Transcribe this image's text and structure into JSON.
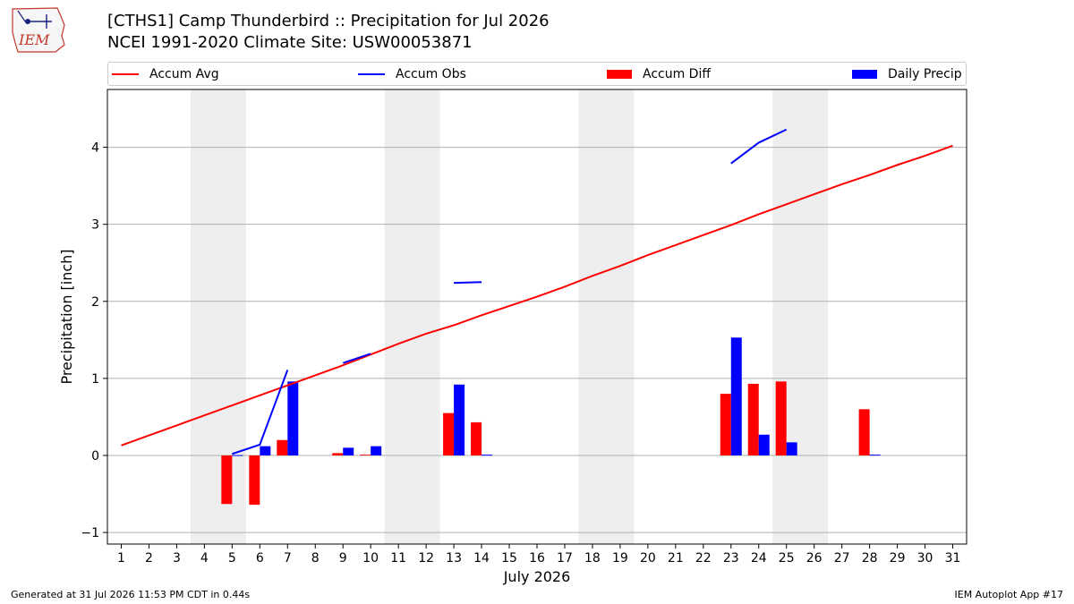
{
  "header": {
    "title_line1": "[CTHS1] Camp Thunderbird :: Precipitation for Jul 2026",
    "title_line2": "NCEI 1991-2020 Climate Site: USW00053871"
  },
  "logo": {
    "text": "IEM"
  },
  "legend": {
    "items": [
      {
        "label": "Accum Avg",
        "kind": "line",
        "color": "#ff0000"
      },
      {
        "label": "Accum Obs",
        "kind": "line",
        "color": "#0000ff"
      },
      {
        "label": "Accum Diff",
        "kind": "box",
        "color": "#ff0000"
      },
      {
        "label": "Daily Precip",
        "kind": "box",
        "color": "#0000ff"
      }
    ]
  },
  "footer": {
    "generated": "Generated at 31 Jul 2026 11:53 PM CDT in 0.44s",
    "app": "IEM Autoplot App #17"
  },
  "chart_data": {
    "type": "bar",
    "xlabel": "July 2026",
    "ylabel": "Precipitation [inch]",
    "xlim": [
      0.5,
      31.5
    ],
    "ylim": [
      -1.15,
      4.75
    ],
    "yticks": [
      -1,
      0,
      1,
      2,
      3,
      4
    ],
    "xticks": [
      1,
      2,
      3,
      4,
      5,
      6,
      7,
      8,
      9,
      10,
      11,
      12,
      13,
      14,
      15,
      16,
      17,
      18,
      19,
      20,
      21,
      22,
      23,
      24,
      25,
      26,
      27,
      28,
      29,
      30,
      31
    ],
    "grid": "horizontal",
    "weekend_shading": [
      [
        3.5,
        5.5
      ],
      [
        10.5,
        12.5
      ],
      [
        17.5,
        19.5
      ],
      [
        24.5,
        26.5
      ]
    ],
    "colors": {
      "avg": "#ff0000",
      "obs": "#0000ff",
      "diff": "#ff0000",
      "daily": "#0000ff",
      "shade": "#eeeeee"
    },
    "accum_avg": {
      "x": [
        1,
        2,
        3,
        4,
        5,
        6,
        7,
        8,
        9,
        10,
        11,
        12,
        13,
        14,
        15,
        16,
        17,
        18,
        19,
        20,
        21,
        22,
        23,
        24,
        25,
        26,
        27,
        28,
        29,
        30,
        31
      ],
      "y": [
        0.13,
        0.26,
        0.39,
        0.52,
        0.65,
        0.78,
        0.91,
        1.04,
        1.17,
        1.31,
        1.45,
        1.58,
        1.69,
        1.82,
        1.94,
        2.06,
        2.19,
        2.33,
        2.46,
        2.6,
        2.73,
        2.86,
        2.99,
        3.13,
        3.26,
        3.39,
        3.52,
        3.64,
        3.77,
        3.89,
        4.02
      ]
    },
    "accum_obs_segments": [
      {
        "x": [
          5,
          6,
          7
        ],
        "y": [
          0.02,
          0.14,
          1.11
        ]
      },
      {
        "x": [
          9,
          10
        ],
        "y": [
          1.2,
          1.32
        ]
      },
      {
        "x": [
          13,
          14
        ],
        "y": [
          2.24,
          2.25
        ]
      },
      {
        "x": [
          23,
          24,
          25
        ],
        "y": [
          3.79,
          4.06,
          4.23
        ]
      }
    ],
    "series": [
      {
        "name": "Accum Diff",
        "x": [
          5,
          6,
          7,
          9,
          10,
          13,
          14,
          23,
          24,
          25,
          28
        ],
        "values": [
          -0.63,
          -0.64,
          0.2,
          0.03,
          0.01,
          0.55,
          0.43,
          0.8,
          0.93,
          0.96,
          0.6
        ]
      },
      {
        "name": "Daily Precip",
        "x": [
          5,
          6,
          7,
          9,
          10,
          13,
          14,
          23,
          24,
          25,
          28
        ],
        "values": [
          0.005,
          0.12,
          0.96,
          0.1,
          0.12,
          0.92,
          0.01,
          1.53,
          0.27,
          0.17,
          0.01
        ]
      }
    ]
  }
}
